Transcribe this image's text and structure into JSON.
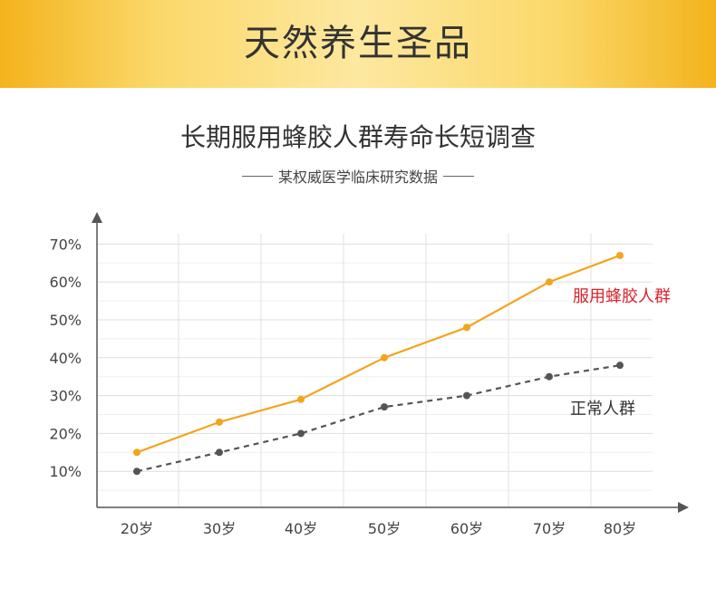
{
  "banner": {
    "title": "天然养生圣品"
  },
  "chart_data": {
    "type": "line",
    "title": "长期服用蜂胶人群寿命长短调查",
    "subtitle": "某权威医学临床研究数据",
    "categories": [
      "20岁",
      "30岁",
      "40岁",
      "50岁",
      "60岁",
      "70岁",
      "80岁"
    ],
    "y_ticks": [
      "10%",
      "20%",
      "30%",
      "40%",
      "50%",
      "60%",
      "70%"
    ],
    "ylim": [
      0,
      70
    ],
    "grid": true,
    "series": [
      {
        "name": "服用蜂胶人群",
        "values": [
          15,
          23,
          29,
          40,
          48,
          60,
          67
        ],
        "color": "#f3a51c",
        "label_color": "#d9232d",
        "style": "solid"
      },
      {
        "name": "正常人群",
        "values": [
          10,
          15,
          20,
          27,
          30,
          35,
          38
        ],
        "color": "#555555",
        "label_color": "#333333",
        "style": "dashed"
      }
    ]
  }
}
